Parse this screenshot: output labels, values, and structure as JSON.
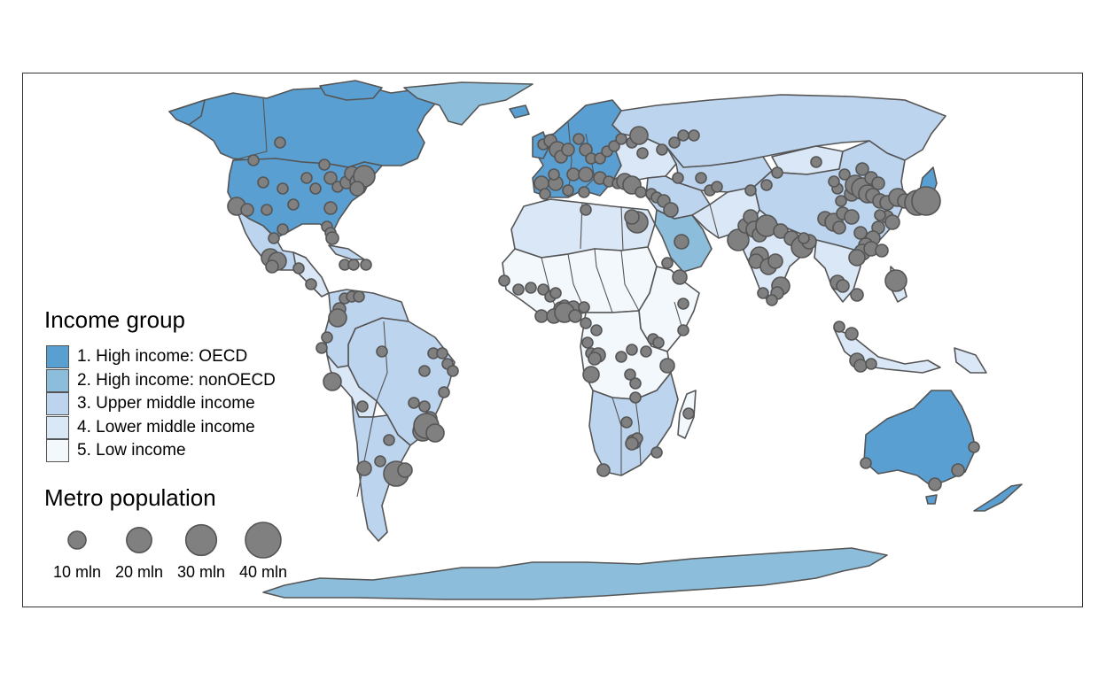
{
  "legend_fill": {
    "title": "Income group",
    "items": [
      {
        "label": "1. High income: OECD",
        "color": "#5A9FD1"
      },
      {
        "label": "2. High income: nonOECD",
        "color": "#8CBEDB"
      },
      {
        "label": "3. Upper middle income",
        "color": "#BDD4EE"
      },
      {
        "label": "4. Lower middle income",
        "color": "#DAE7F6"
      },
      {
        "label": "5. Low income",
        "color": "#F3F8FD"
      }
    ]
  },
  "legend_size": {
    "title": "Metro population",
    "items": [
      {
        "label": "10 mln",
        "value_mln": 10
      },
      {
        "label": "20 mln",
        "value_mln": 20
      },
      {
        "label": "30 mln",
        "value_mln": 30
      },
      {
        "label": "40 mln",
        "value_mln": 40
      }
    ]
  },
  "colors": {
    "city_fill": "#808080",
    "border": "#555555",
    "frame": "#333333"
  }
}
